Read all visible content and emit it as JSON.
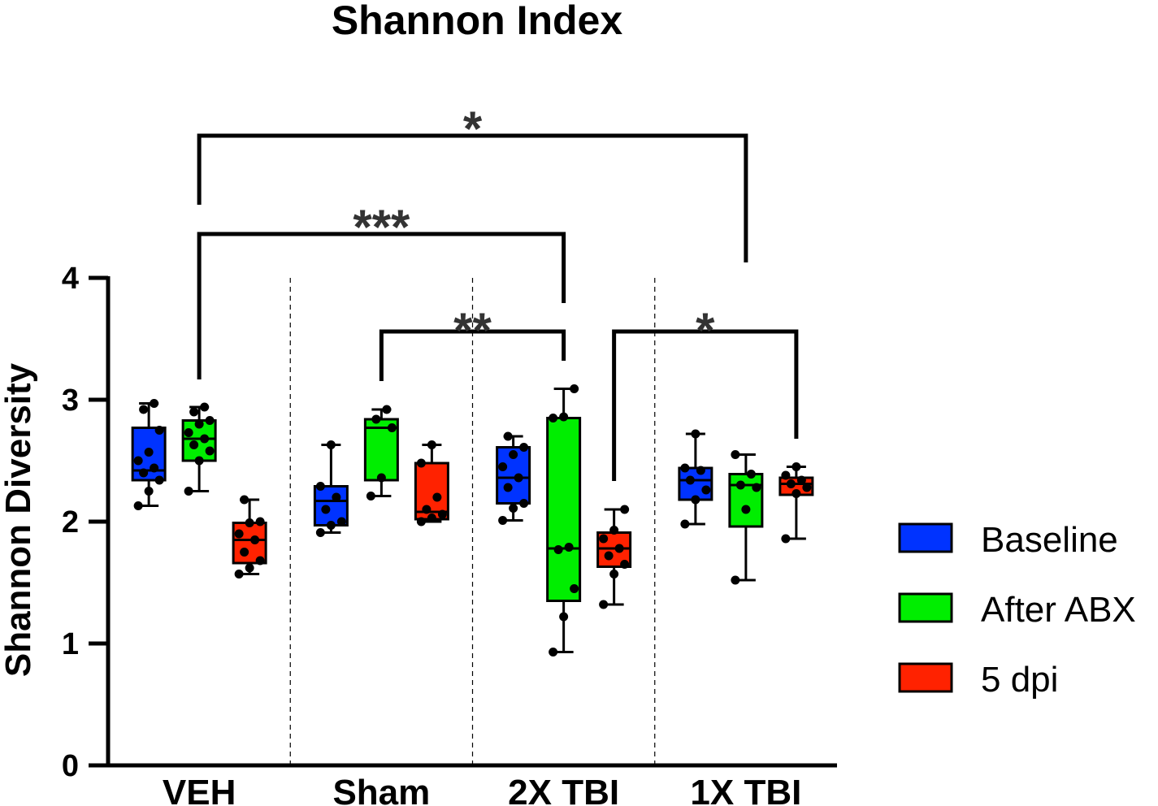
{
  "chart_data": {
    "type": "box",
    "title": "Shannon Index",
    "ylabel": "Shannon Diversity",
    "xlabel": "",
    "ylim": [
      0,
      4
    ],
    "yticks": [
      "0",
      "1",
      "2",
      "3",
      "4"
    ],
    "categories": [
      "VEH",
      "Sham",
      "2X TBI",
      "1X TBI"
    ],
    "grid": false,
    "legend_position": "right",
    "series": [
      {
        "name": "Baseline",
        "color": "#0033ff",
        "boxes": [
          {
            "min": 2.13,
            "q1": 2.34,
            "median": 2.42,
            "q3": 2.77,
            "max": 2.97,
            "points": [
              2.13,
              2.25,
              2.34,
              2.4,
              2.44,
              2.5,
              2.57,
              2.75,
              2.92,
              2.97
            ]
          },
          {
            "min": 1.91,
            "q1": 1.97,
            "median": 2.17,
            "q3": 2.29,
            "max": 2.63,
            "points": [
              1.91,
              1.97,
              2.0,
              2.1,
              2.2,
              2.29,
              2.63
            ]
          },
          {
            "min": 2.01,
            "q1": 2.15,
            "median": 2.36,
            "q3": 2.61,
            "max": 2.7,
            "points": [
              2.01,
              2.11,
              2.15,
              2.28,
              2.36,
              2.45,
              2.55,
              2.61,
              2.7
            ]
          },
          {
            "min": 1.98,
            "q1": 2.18,
            "median": 2.34,
            "q3": 2.44,
            "max": 2.72,
            "points": [
              1.98,
              2.18,
              2.26,
              2.34,
              2.42,
              2.44,
              2.72
            ]
          }
        ]
      },
      {
        "name": "After ABX",
        "color": "#00ee00",
        "boxes": [
          {
            "min": 2.25,
            "q1": 2.5,
            "median": 2.68,
            "q3": 2.83,
            "max": 2.94,
            "points": [
              2.25,
              2.5,
              2.58,
              2.63,
              2.68,
              2.73,
              2.8,
              2.83,
              2.9,
              2.94
            ]
          },
          {
            "min": 2.21,
            "q1": 2.34,
            "median": 2.77,
            "q3": 2.84,
            "max": 2.92,
            "points": [
              2.21,
              2.36,
              2.77,
              2.84,
              2.92
            ]
          },
          {
            "min": 0.93,
            "q1": 1.35,
            "median": 1.78,
            "q3": 2.85,
            "max": 3.09,
            "points": [
              0.93,
              1.22,
              1.45,
              1.77,
              1.79,
              2.85,
              2.86,
              3.09
            ]
          },
          {
            "min": 1.52,
            "q1": 1.96,
            "median": 2.3,
            "q3": 2.39,
            "max": 2.55,
            "points": [
              1.52,
              2.1,
              2.28,
              2.3,
              2.39,
              2.55
            ]
          }
        ]
      },
      {
        "name": "5 dpi",
        "color": "#ff2200",
        "boxes": [
          {
            "min": 1.57,
            "q1": 1.66,
            "median": 1.85,
            "q3": 1.99,
            "max": 2.18,
            "points": [
              1.57,
              1.62,
              1.68,
              1.75,
              1.85,
              1.9,
              1.99,
              2.0,
              2.18
            ]
          },
          {
            "min": 2.0,
            "q1": 2.02,
            "median": 2.08,
            "q3": 2.48,
            "max": 2.63,
            "points": [
              2.0,
              2.03,
              2.06,
              2.1,
              2.2,
              2.48,
              2.63
            ]
          },
          {
            "min": 1.32,
            "q1": 1.63,
            "median": 1.78,
            "q3": 1.91,
            "max": 2.1,
            "points": [
              1.32,
              1.57,
              1.65,
              1.72,
              1.78,
              1.86,
              1.93,
              2.1
            ]
          },
          {
            "min": 1.86,
            "q1": 2.22,
            "median": 2.31,
            "q3": 2.36,
            "max": 2.45,
            "points": [
              1.86,
              2.23,
              2.28,
              2.31,
              2.34,
              2.38,
              2.45
            ]
          }
        ]
      }
    ],
    "significance": [
      {
        "label": "*",
        "from": "VEH / After ABX",
        "to": "1X TBI / After ABX"
      },
      {
        "label": "***",
        "from": "VEH / After ABX",
        "to": "2X TBI / After ABX"
      },
      {
        "label": "**",
        "from": "Sham / After ABX",
        "to": "2X TBI / After ABX"
      },
      {
        "label": "*",
        "from": "2X TBI / 5 dpi",
        "to": "1X TBI / 5 dpi"
      }
    ]
  }
}
